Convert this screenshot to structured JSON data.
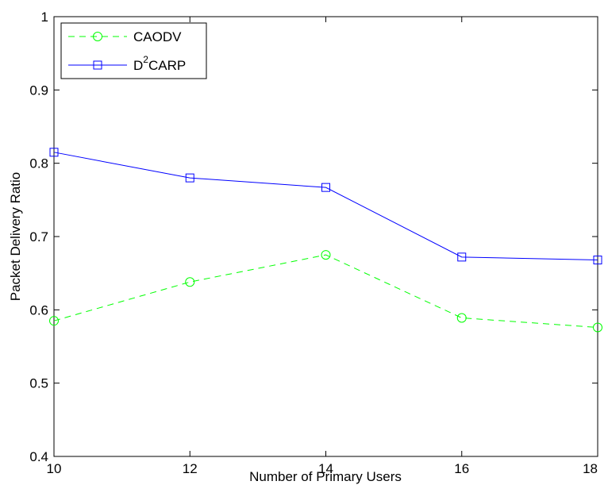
{
  "chart_data": {
    "type": "line",
    "xlabel": "Number of Primary Users",
    "ylabel": "Packet Delivery Ratio",
    "xlim": [
      10,
      18
    ],
    "ylim": [
      0.4,
      1
    ],
    "x_ticks": [
      "10",
      "12",
      "14",
      "16",
      "18"
    ],
    "y_ticks": [
      "0.4",
      "0.5",
      "0.6",
      "0.7",
      "0.8",
      "0.9",
      "1"
    ],
    "grid": false,
    "legend_position": "top-left",
    "x": [
      10,
      12,
      14,
      16,
      18
    ],
    "series": [
      {
        "name": "CAODV",
        "values": [
          0.585,
          0.638,
          0.675,
          0.589,
          0.576
        ],
        "color": "#00ff00",
        "line_style": "dashed",
        "marker": "circle"
      },
      {
        "name": "D2CARP",
        "legend_base": "D",
        "legend_sup": "2",
        "legend_rest": "CARP",
        "values": [
          0.815,
          0.78,
          0.767,
          0.672,
          0.668
        ],
        "color": "#0000ff",
        "line_style": "solid",
        "marker": "square"
      }
    ]
  }
}
